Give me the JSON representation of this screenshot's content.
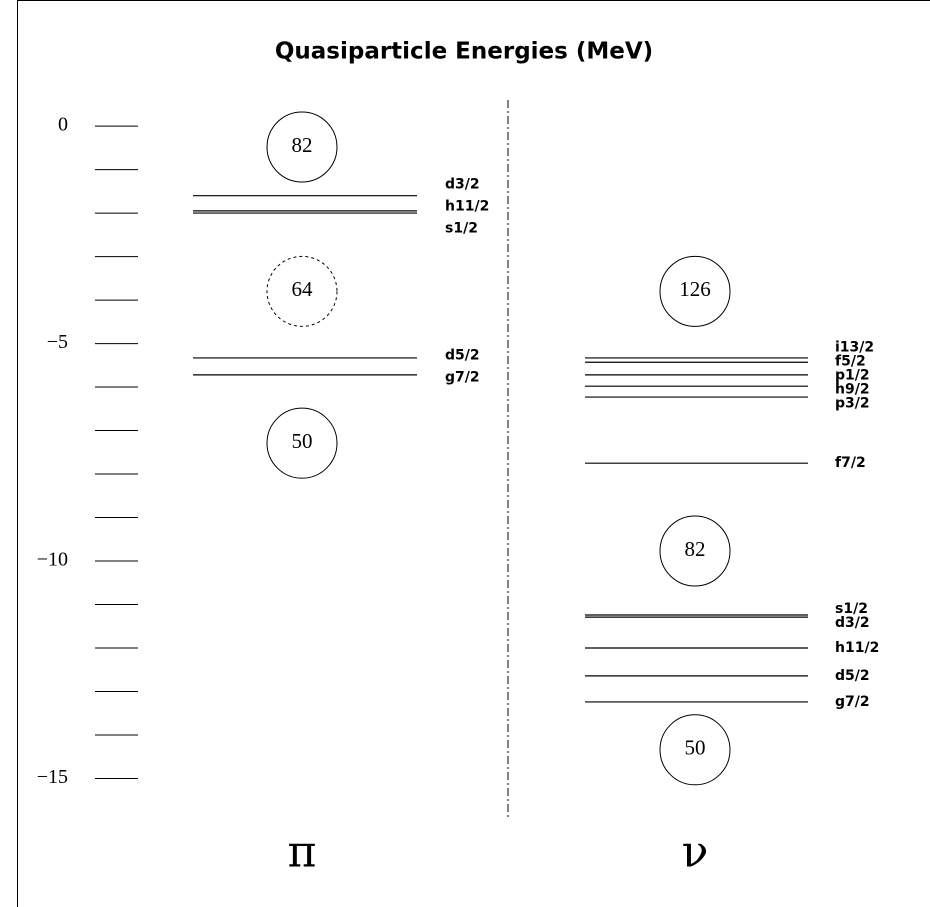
{
  "chart_data": {
    "type": "levels",
    "title": "Quasiparticle Energies (MeV)",
    "ylim": [
      0.6,
      -16
    ],
    "yticks": [
      0,
      {
        "value": -5,
        "label": "−5"
      },
      {
        "value": -10,
        "label": "−10"
      },
      {
        "value": -15,
        "label": "−15"
      }
    ],
    "minor_yticks": [
      -1,
      -2,
      -3,
      -4,
      -6,
      -7,
      -8,
      -9,
      -11,
      -12,
      -13,
      -14
    ],
    "columns": [
      {
        "name": "π",
        "levels": [
          {
            "label": "d3/2",
            "energy": -1.6
          },
          {
            "label": "h11/2",
            "energy": -1.95
          },
          {
            "label": "s1/2",
            "energy": -2.0
          },
          {
            "label": "d5/2",
            "energy": -5.33
          },
          {
            "label": "g7/2",
            "energy": -5.72
          }
        ],
        "gaps": [
          {
            "label": "82",
            "energy": -0.48,
            "dashed": false
          },
          {
            "label": "64",
            "energy": -3.8,
            "dashed": true
          },
          {
            "label": "50",
            "energy": -7.29,
            "dashed": false
          }
        ]
      },
      {
        "name": "ν",
        "levels": [
          {
            "label": "i13/2",
            "energy": -5.33
          },
          {
            "label": "f5/2",
            "energy": -5.43
          },
          {
            "label": "p1/2",
            "energy": -5.72
          },
          {
            "label": "h9/2",
            "energy": -5.98
          },
          {
            "label": "p3/2",
            "energy": -6.23
          },
          {
            "label": "f7/2",
            "energy": -7.75
          },
          {
            "label": "s1/2",
            "energy": -11.24
          },
          {
            "label": "d3/2",
            "energy": -11.29
          },
          {
            "label": "h11/2",
            "energy": -12.0
          },
          {
            "label": "d5/2",
            "energy": -12.64
          },
          {
            "label": "g7/2",
            "energy": -13.24
          }
        ],
        "gaps": [
          {
            "label": "126",
            "energy": -3.8,
            "dashed": false
          },
          {
            "label": "82",
            "energy": -9.77,
            "dashed": false
          },
          {
            "label": "50",
            "energy": -14.34,
            "dashed": false
          }
        ]
      }
    ]
  }
}
